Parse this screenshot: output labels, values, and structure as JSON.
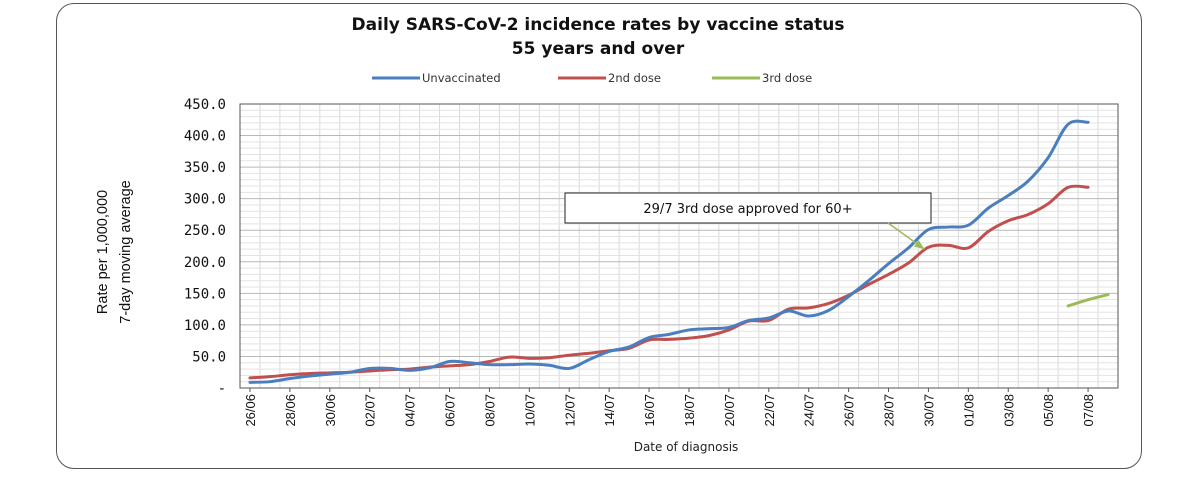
{
  "chart_data": {
    "type": "line",
    "title": [
      "Daily SARS-CoV-2 incidence rates by vaccine status",
      "55 years and over"
    ],
    "xlabel": "Date of diagnosis",
    "ylabel": [
      "Rate per 1,000,000",
      "7-day moving average"
    ],
    "ylim": [
      0,
      450
    ],
    "yticks": [
      "-",
      "50.0",
      "100.0",
      "150.0",
      "200.0",
      "250.0",
      "300.0",
      "350.0",
      "400.0",
      "450.0"
    ],
    "grid": true,
    "legend_position": "top-center",
    "categories": [
      "26/06",
      "27/06",
      "28/06",
      "29/06",
      "30/06",
      "01/07",
      "02/07",
      "03/07",
      "04/07",
      "05/07",
      "06/07",
      "07/07",
      "08/07",
      "09/07",
      "10/07",
      "11/07",
      "12/07",
      "13/07",
      "14/07",
      "15/07",
      "16/07",
      "17/07",
      "18/07",
      "19/07",
      "20/07",
      "21/07",
      "22/07",
      "23/07",
      "24/07",
      "25/07",
      "26/07",
      "27/07",
      "28/07",
      "29/07",
      "30/07",
      "31/07",
      "01/08",
      "02/08",
      "03/08",
      "04/08",
      "05/08",
      "06/08",
      "07/08",
      "08/08"
    ],
    "tick_labels": [
      "26/06",
      "28/06",
      "30/06",
      "02/07",
      "04/07",
      "06/07",
      "08/07",
      "10/07",
      "12/07",
      "14/07",
      "16/07",
      "18/07",
      "20/07",
      "22/07",
      "24/07",
      "26/07",
      "28/07",
      "30/07",
      "01/08",
      "03/08",
      "05/08",
      "07/08"
    ],
    "series": [
      {
        "name": "Unvaccinated",
        "color": "#4a7ebf",
        "values": [
          9,
          10,
          15,
          19,
          22,
          25,
          31,
          31,
          28,
          32,
          42,
          40,
          37,
          37,
          38,
          36,
          31,
          45,
          58,
          65,
          80,
          85,
          92,
          94,
          96,
          107,
          111,
          122,
          114,
          123,
          145,
          170,
          197,
          222,
          251,
          255,
          258,
          285,
          305,
          328,
          365,
          418,
          421,
          null
        ]
      },
      {
        "name": "2nd dose",
        "color": "#c0504d",
        "values": [
          16,
          18,
          21,
          23,
          24,
          25,
          27,
          29,
          30,
          33,
          35,
          37,
          42,
          49,
          47,
          48,
          52,
          55,
          59,
          63,
          76,
          77,
          79,
          83,
          92,
          106,
          107,
          125,
          127,
          134,
          147,
          164,
          180,
          198,
          223,
          226,
          222,
          248,
          265,
          275,
          292,
          318,
          318,
          null
        ]
      },
      {
        "name": "3rd dose",
        "color": "#9bbb59",
        "values": [
          null,
          null,
          null,
          null,
          null,
          null,
          null,
          null,
          null,
          null,
          null,
          null,
          null,
          null,
          null,
          null,
          null,
          null,
          null,
          null,
          null,
          null,
          null,
          null,
          null,
          null,
          null,
          null,
          null,
          null,
          null,
          null,
          null,
          null,
          null,
          null,
          null,
          null,
          null,
          null,
          null,
          130,
          140,
          148
        ]
      }
    ],
    "annotation": {
      "text": "29/7 3rd dose approved for 60+",
      "points_to_category": "30/07",
      "points_to_value": 220
    }
  }
}
